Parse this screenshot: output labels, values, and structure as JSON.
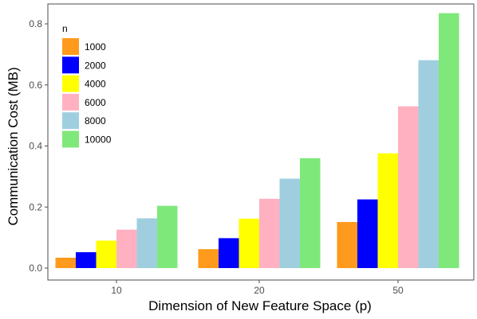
{
  "chart_data": {
    "type": "bar",
    "title": "",
    "xlabel": "Dimension of New Feature Space (p)",
    "ylabel": "Communication Cost (MB)",
    "categories": [
      "10",
      "20",
      "50"
    ],
    "ylim": [
      0,
      0.85
    ],
    "yticks": [
      "0.0",
      "0.2",
      "0.4",
      "0.6",
      "0.8"
    ],
    "yticks_values": [
      0,
      0.2,
      0.4,
      0.6,
      0.8
    ],
    "grid": false,
    "legend": {
      "title": "n",
      "placement": "top-left"
    },
    "series": [
      {
        "name": "1000",
        "color": "#ff9a1c",
        "values": [
          0.034,
          0.062,
          0.151
        ]
      },
      {
        "name": "2000",
        "color": "#0000ff",
        "values": [
          0.052,
          0.098,
          0.225
        ]
      },
      {
        "name": "4000",
        "color": "#ffff00",
        "values": [
          0.09,
          0.162,
          0.376
        ]
      },
      {
        "name": "6000",
        "color": "#ffb1c1",
        "values": [
          0.126,
          0.227,
          0.53
        ]
      },
      {
        "name": "8000",
        "color": "#9fcfdf",
        "values": [
          0.163,
          0.293,
          0.681
        ]
      },
      {
        "name": "10000",
        "color": "#7fe87a",
        "values": [
          0.204,
          0.36,
          0.835
        ]
      }
    ]
  }
}
